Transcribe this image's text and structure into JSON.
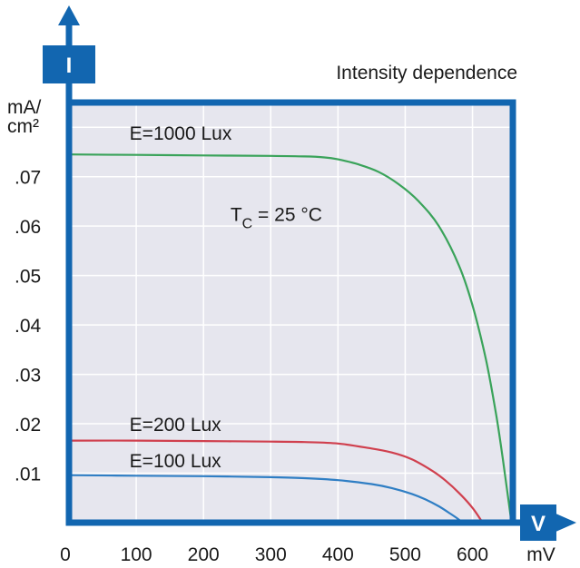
{
  "chart_data": {
    "type": "line",
    "title": "Intensity dependence",
    "y_axis_letter": "I",
    "x_axis_letter": "V",
    "ylabel_line1": "mA/",
    "ylabel_line2": "cm²",
    "xlabel": "mV",
    "condition_main": "T",
    "condition_sub": "C",
    "condition_rest": " = 25 °C",
    "xlim": [
      0,
      660
    ],
    "ylim": [
      0,
      0.085
    ],
    "x_ticks": [
      "0",
      "100",
      "200",
      "300",
      "400",
      "500",
      "600"
    ],
    "x_tick_values": [
      0,
      100,
      200,
      300,
      400,
      500,
      600
    ],
    "y_ticks": [
      ".01",
      ".02",
      ".03",
      ".04",
      ".05",
      ".06",
      ".07"
    ],
    "y_tick_values": [
      0.01,
      0.02,
      0.03,
      0.04,
      0.05,
      0.06,
      0.07
    ],
    "grid": true,
    "colors": {
      "frame": "#1266b0",
      "plot_bg": "#e6e6ee",
      "grid": "#ffffff"
    },
    "series": [
      {
        "name": "E=1000 Lux",
        "color": "#3aa35a",
        "x": [
          0,
          100,
          200,
          300,
          350,
          380,
          400,
          430,
          460,
          490,
          520,
          550,
          580,
          600,
          620,
          635,
          645,
          652,
          658
        ],
        "values": [
          0.0745,
          0.0744,
          0.0743,
          0.0742,
          0.0741,
          0.0739,
          0.0735,
          0.0725,
          0.071,
          0.0685,
          0.065,
          0.06,
          0.052,
          0.044,
          0.033,
          0.022,
          0.013,
          0.006,
          0
        ]
      },
      {
        "name": "E=200 Lux",
        "color": "#d0404e",
        "x": [
          0,
          100,
          200,
          300,
          350,
          400,
          450,
          480,
          510,
          540,
          560,
          580,
          600,
          615
        ],
        "values": [
          0.0166,
          0.0166,
          0.0165,
          0.0164,
          0.0163,
          0.016,
          0.015,
          0.0142,
          0.0128,
          0.0105,
          0.0085,
          0.006,
          0.003,
          0
        ]
      },
      {
        "name": "E=100 Lux",
        "color": "#2f7ec4",
        "x": [
          0,
          100,
          200,
          300,
          350,
          400,
          450,
          480,
          510,
          530,
          550,
          565,
          578,
          585
        ],
        "values": [
          0.0096,
          0.0095,
          0.0094,
          0.0092,
          0.009,
          0.0086,
          0.0078,
          0.007,
          0.0058,
          0.0047,
          0.0033,
          0.002,
          0.0008,
          0
        ]
      }
    ],
    "series_label_positions": [
      {
        "x": 90,
        "y": 0.0775
      },
      {
        "x": 90,
        "y": 0.0185
      },
      {
        "x": 90,
        "y": 0.0112
      }
    ],
    "condition_position": {
      "x": 240,
      "y": 0.061
    }
  }
}
